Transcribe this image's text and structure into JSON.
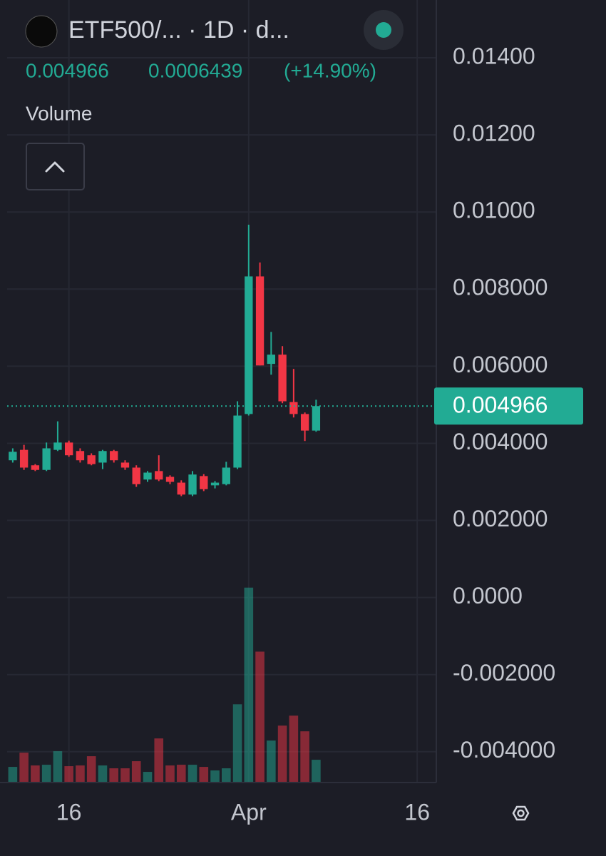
{
  "chart_data": {
    "type": "candlestick",
    "title": "ETF500/... · 1D · d...",
    "legend_values": {
      "close": "0.004966",
      "change": "0.0006439",
      "change_pct": "(+14.90%)"
    },
    "volume_label": "Volume",
    "categories": [
      null,
      null,
      null,
      null,
      null,
      null,
      null,
      null,
      null,
      null,
      null,
      null,
      null,
      null,
      null,
      null,
      null,
      null,
      null,
      null,
      null,
      null,
      null,
      null,
      null,
      null,
      null,
      null
    ],
    "open": [
      0.00356,
      0.00383,
      0.00343,
      0.00331,
      0.00383,
      0.00402,
      0.0038,
      0.00369,
      0.0035,
      0.0038,
      0.0035,
      0.00337,
      0.00306,
      0.00328,
      0.00313,
      0.00298,
      0.00267,
      0.00315,
      0.00291,
      0.00294,
      0.00337,
      0.00476,
      0.00833,
      0.00606,
      0.0063,
      0.00507,
      0.00476,
      0.00433
    ],
    "high": [
      0.00387,
      0.00396,
      0.00346,
      0.00402,
      0.00457,
      0.00407,
      0.00387,
      0.00374,
      0.00383,
      0.00383,
      0.00356,
      0.00343,
      0.00328,
      0.00369,
      0.00317,
      0.00304,
      0.00328,
      0.0032,
      0.00302,
      0.00352,
      0.00509,
      0.00967,
      0.00869,
      0.00689,
      0.00652,
      0.00593,
      0.0048,
      0.00513
    ],
    "low": [
      0.0035,
      0.00331,
      0.00328,
      0.00328,
      0.0038,
      0.00365,
      0.0035,
      0.00343,
      0.00333,
      0.0035,
      0.00331,
      0.00287,
      0.003,
      0.00302,
      0.00294,
      0.00263,
      0.00263,
      0.00276,
      0.00283,
      0.00291,
      0.00333,
      0.00472,
      0.00602,
      0.00578,
      0.00504,
      0.00467,
      0.00406,
      0.0043
    ],
    "close": [
      0.00378,
      0.00337,
      0.00331,
      0.00387,
      0.00402,
      0.00369,
      0.00356,
      0.00346,
      0.0038,
      0.00356,
      0.00337,
      0.00294,
      0.00324,
      0.00306,
      0.003,
      0.00267,
      0.00319,
      0.00281,
      0.00298,
      0.00337,
      0.00472,
      0.00833,
      0.00602,
      0.0063,
      0.00509,
      0.00476,
      0.00433,
      0.004966
    ],
    "volume": [
      22,
      42,
      24,
      25,
      44,
      23,
      24,
      37,
      24,
      20,
      20,
      30,
      15,
      62,
      24,
      25,
      25,
      22,
      17,
      20,
      110,
      274,
      184,
      59,
      80,
      94,
      72,
      32
    ],
    "volume_lim": [
      0,
      1100
    ],
    "up_color": "#22ab94",
    "down_color": "#f23645",
    "last_price": 0.004966,
    "ylim": [
      -0.0048,
      0.0155
    ],
    "yticks": [
      {
        "value": 0.014,
        "label": "0.01400"
      },
      {
        "value": 0.012,
        "label": "0.01200"
      },
      {
        "value": 0.01,
        "label": "0.01000"
      },
      {
        "value": 0.008,
        "label": "0.008000"
      },
      {
        "value": 0.006,
        "label": "0.006000"
      },
      {
        "value": 0.004,
        "label": "0.004000"
      },
      {
        "value": 0.002,
        "label": "0.002000"
      },
      {
        "value": 0,
        "label": "0.0000"
      },
      {
        "value": -0.002,
        "label": "-0.002000"
      },
      {
        "value": -0.004,
        "label": "-0.004000"
      }
    ],
    "xlim": [
      -0.5,
      37.7
    ],
    "xticks": [
      {
        "value": 5,
        "label": "16"
      },
      {
        "value": 21,
        "label": "Apr"
      },
      {
        "value": 36,
        "label": "16"
      }
    ],
    "grid": true
  }
}
